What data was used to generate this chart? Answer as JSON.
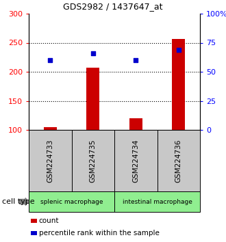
{
  "title": "GDS2982 / 1437647_at",
  "samples": [
    "GSM224733",
    "GSM224735",
    "GSM224734",
    "GSM224736"
  ],
  "count_values": [
    105,
    207,
    120,
    257
  ],
  "percentile_values": [
    220,
    232,
    220,
    238
  ],
  "ylim_left": [
    100,
    300
  ],
  "ylim_right": [
    0,
    100
  ],
  "yticks_left": [
    100,
    150,
    200,
    250,
    300
  ],
  "yticks_right": [
    0,
    25,
    50,
    75,
    100
  ],
  "ytick_labels_right": [
    "0",
    "25",
    "50",
    "75",
    "100%"
  ],
  "bar_color": "#CC0000",
  "dot_color": "#0000CC",
  "label_bg_color": "#C8C8C8",
  "group_color": "#90EE90",
  "group_labels": [
    "splenic macrophage",
    "intestinal macrophage"
  ],
  "legend_count_label": "count",
  "legend_pct_label": "percentile rank within the sample",
  "cell_type_label": "cell type",
  "bar_width": 0.3,
  "dot_size": 18,
  "grid_yticks": [
    150,
    200,
    250
  ]
}
